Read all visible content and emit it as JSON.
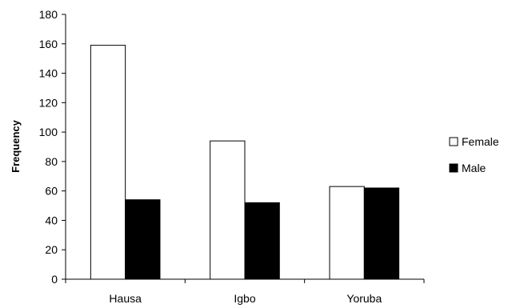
{
  "chart_data": {
    "type": "bar",
    "title": "",
    "xlabel": "",
    "ylabel": "Frequency",
    "categories": [
      "Hausa",
      "Igbo",
      "Yoruba"
    ],
    "series": [
      {
        "name": "Female",
        "values": [
          159,
          94,
          63
        ],
        "color": "#ffffff",
        "stroke": "#000000"
      },
      {
        "name": "Male",
        "values": [
          54,
          52,
          62
        ],
        "color": "#000000",
        "stroke": "#000000"
      }
    ],
    "ylim": [
      0,
      180
    ],
    "yticks": [
      0,
      20,
      40,
      60,
      80,
      100,
      120,
      140,
      160,
      180
    ],
    "grid": false,
    "legend_position": "right"
  }
}
